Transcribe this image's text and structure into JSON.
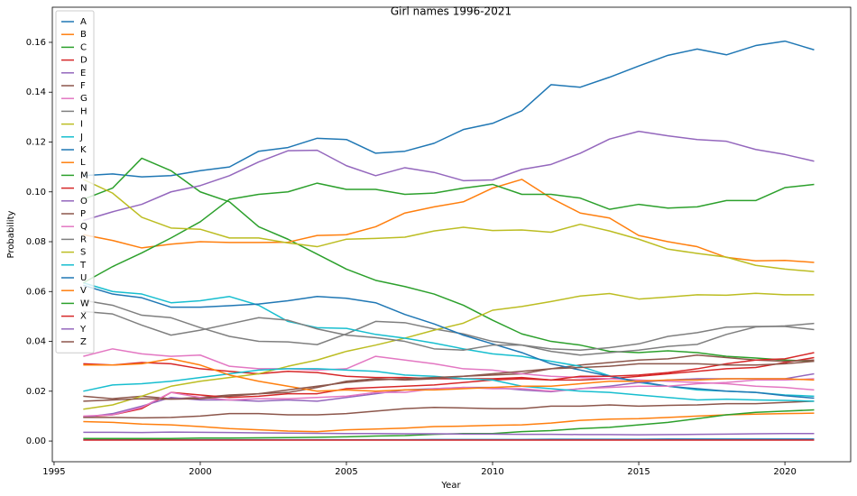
{
  "chart_data": {
    "type": "line",
    "title": "Girl names 1996-2021",
    "x_label": "Year",
    "y_label": "Probability",
    "x": [
      1996,
      1997,
      1998,
      1999,
      2000,
      2001,
      2002,
      2003,
      2004,
      2005,
      2006,
      2007,
      2008,
      2009,
      2010,
      2011,
      2012,
      2013,
      2014,
      2015,
      2016,
      2017,
      2018,
      2019,
      2020,
      2021
    ],
    "xlim": [
      1994.94,
      2022.25
    ],
    "xticks": [
      1995,
      2000,
      2005,
      2010,
      2015,
      2020
    ],
    "ylim": [
      -0.0083,
      0.1741
    ],
    "yticks": [
      {
        "value": 0,
        "label": "0.00"
      },
      0.02,
      0.04,
      0.06,
      0.08,
      {
        "value": 0.1,
        "label": "0.10"
      },
      0.12,
      0.14,
      0.16
    ],
    "grid": false,
    "legend": "upper left",
    "series": [
      {
        "name": "A",
        "color": "#1f77b4",
        "values": [
          0.1065,
          0.1072,
          0.106,
          0.1065,
          0.1085,
          0.11,
          0.1163,
          0.1178,
          0.1215,
          0.121,
          0.1155,
          0.1163,
          0.1195,
          0.125,
          0.1275,
          0.1325,
          0.143,
          0.142,
          0.146,
          0.1505,
          0.1548,
          0.1573,
          0.155,
          0.1587,
          0.1605,
          0.157
        ]
      },
      {
        "name": "B",
        "color": "#ff7f0e",
        "values": [
          0.0078,
          0.0075,
          0.0068,
          0.0065,
          0.0058,
          0.005,
          0.0045,
          0.004,
          0.0038,
          0.0045,
          0.0048,
          0.0052,
          0.0058,
          0.006,
          0.0063,
          0.0065,
          0.0072,
          0.0083,
          0.0088,
          0.009,
          0.0095,
          0.01,
          0.0105,
          0.0108,
          0.011,
          0.0112
        ]
      },
      {
        "name": "C",
        "color": "#2ca02c",
        "values": [
          0.097,
          0.1015,
          0.1135,
          0.1085,
          0.1,
          0.096,
          0.086,
          0.081,
          0.075,
          0.069,
          0.0645,
          0.062,
          0.059,
          0.0545,
          0.0485,
          0.043,
          0.04,
          0.0385,
          0.036,
          0.0355,
          0.0362,
          0.0355,
          0.034,
          0.0333,
          0.0325,
          0.032
        ]
      },
      {
        "name": "D",
        "color": "#d62728",
        "values": [
          0.031,
          0.0305,
          0.0315,
          0.031,
          0.029,
          0.028,
          0.027,
          0.028,
          0.0275,
          0.026,
          0.0255,
          0.0255,
          0.025,
          0.025,
          0.025,
          0.0255,
          0.0245,
          0.0245,
          0.025,
          0.026,
          0.027,
          0.028,
          0.029,
          0.0295,
          0.0315,
          0.0335
        ]
      },
      {
        "name": "E",
        "color": "#9467bd",
        "values": [
          0.0885,
          0.092,
          0.095,
          0.1,
          0.1025,
          0.1065,
          0.112,
          0.1165,
          0.1167,
          0.1105,
          0.1065,
          0.1097,
          0.1078,
          0.1045,
          0.1048,
          0.109,
          0.111,
          0.1155,
          0.1212,
          0.1243,
          0.1225,
          0.121,
          0.1203,
          0.117,
          0.115,
          0.1123
        ]
      },
      {
        "name": "F",
        "color": "#8c564b",
        "values": [
          0.018,
          0.017,
          0.018,
          0.017,
          0.0175,
          0.0185,
          0.019,
          0.0195,
          0.0215,
          0.024,
          0.025,
          0.0245,
          0.025,
          0.026,
          0.0265,
          0.027,
          0.029,
          0.0305,
          0.0315,
          0.0325,
          0.033,
          0.0345,
          0.0335,
          0.0325,
          0.032,
          0.0325
        ]
      },
      {
        "name": "G",
        "color": "#e377c2",
        "values": [
          0.034,
          0.037,
          0.035,
          0.034,
          0.0345,
          0.03,
          0.029,
          0.029,
          0.0285,
          0.029,
          0.034,
          0.0325,
          0.031,
          0.029,
          0.0285,
          0.027,
          0.026,
          0.0255,
          0.025,
          0.0245,
          0.024,
          0.0235,
          0.023,
          0.022,
          0.0215,
          0.0205
        ]
      },
      {
        "name": "H",
        "color": "#7f7f7f",
        "values": [
          0.0565,
          0.0545,
          0.0505,
          0.0495,
          0.0455,
          0.042,
          0.04,
          0.0398,
          0.0387,
          0.043,
          0.048,
          0.0475,
          0.045,
          0.043,
          0.04,
          0.0385,
          0.037,
          0.0365,
          0.0375,
          0.039,
          0.042,
          0.0435,
          0.0457,
          0.046,
          0.046,
          0.0447
        ]
      },
      {
        "name": "I",
        "color": "#bcbd22",
        "values": [
          0.0128,
          0.0145,
          0.018,
          0.022,
          0.024,
          0.0255,
          0.027,
          0.03,
          0.0325,
          0.036,
          0.0385,
          0.0413,
          0.0445,
          0.0473,
          0.0525,
          0.054,
          0.056,
          0.0582,
          0.0592,
          0.057,
          0.0578,
          0.0587,
          0.0585,
          0.0593,
          0.0587,
          0.0587
        ]
      },
      {
        "name": "J",
        "color": "#17becf",
        "values": [
          0.0635,
          0.06,
          0.059,
          0.0555,
          0.0563,
          0.058,
          0.0545,
          0.048,
          0.0455,
          0.0452,
          0.0428,
          0.0413,
          0.0393,
          0.037,
          0.035,
          0.034,
          0.032,
          0.03,
          0.0262,
          0.0235,
          0.022,
          0.0205,
          0.02,
          0.0195,
          0.0185,
          0.018
        ]
      },
      {
        "name": "K",
        "color": "#1f77b4",
        "values": [
          0.0625,
          0.059,
          0.0575,
          0.0537,
          0.0537,
          0.0543,
          0.055,
          0.0563,
          0.058,
          0.0573,
          0.0555,
          0.0508,
          0.047,
          0.0425,
          0.039,
          0.0355,
          0.031,
          0.0285,
          0.026,
          0.0238,
          0.022,
          0.021,
          0.02,
          0.0195,
          0.0182,
          0.0172
        ]
      },
      {
        "name": "L",
        "color": "#ff7f0e",
        "values": [
          0.0828,
          0.0805,
          0.0775,
          0.079,
          0.08,
          0.0797,
          0.0797,
          0.0798,
          0.0825,
          0.0828,
          0.086,
          0.0915,
          0.094,
          0.096,
          0.1015,
          0.105,
          0.0975,
          0.0915,
          0.0895,
          0.0825,
          0.08,
          0.078,
          0.0737,
          0.0723,
          0.0725,
          0.0717
        ]
      },
      {
        "name": "M",
        "color": "#2ca02c",
        "values": [
          0.0635,
          0.07,
          0.0755,
          0.0815,
          0.088,
          0.097,
          0.099,
          0.1,
          0.1035,
          0.101,
          0.101,
          0.099,
          0.0995,
          0.1015,
          0.103,
          0.099,
          0.099,
          0.0975,
          0.093,
          0.095,
          0.0935,
          0.094,
          0.0965,
          0.0965,
          0.1017,
          0.103
        ]
      },
      {
        "name": "N",
        "color": "#d62728",
        "values": [
          0.0097,
          0.0105,
          0.013,
          0.0195,
          0.0185,
          0.0175,
          0.018,
          0.019,
          0.019,
          0.021,
          0.0215,
          0.022,
          0.0225,
          0.0235,
          0.0245,
          0.025,
          0.0245,
          0.026,
          0.026,
          0.0265,
          0.0275,
          0.029,
          0.031,
          0.0325,
          0.033,
          0.0355
        ]
      },
      {
        "name": "O",
        "color": "#9467bd",
        "values": [
          0.0095,
          0.011,
          0.014,
          0.0175,
          0.0165,
          0.0165,
          0.016,
          0.0165,
          0.016,
          0.0175,
          0.019,
          0.0205,
          0.021,
          0.0215,
          0.0215,
          0.0205,
          0.0198,
          0.021,
          0.022,
          0.0235,
          0.0245,
          0.025,
          0.025,
          0.025,
          0.025,
          0.027
        ]
      },
      {
        "name": "P",
        "color": "#8c564b",
        "values": [
          0.0095,
          0.0095,
          0.0093,
          0.0095,
          0.01,
          0.011,
          0.011,
          0.0105,
          0.0105,
          0.011,
          0.012,
          0.013,
          0.0135,
          0.0133,
          0.013,
          0.013,
          0.014,
          0.014,
          0.0145,
          0.014,
          0.0143,
          0.0145,
          0.015,
          0.015,
          0.0155,
          0.016
        ]
      },
      {
        "name": "Q",
        "color": "#e377c2",
        "values": [
          0.01,
          0.0105,
          0.0135,
          0.0195,
          0.0175,
          0.0165,
          0.017,
          0.017,
          0.0175,
          0.018,
          0.0195,
          0.0195,
          0.021,
          0.0215,
          0.021,
          0.021,
          0.02,
          0.021,
          0.0215,
          0.022,
          0.022,
          0.023,
          0.0235,
          0.0245,
          0.0245,
          0.025
        ]
      },
      {
        "name": "R",
        "color": "#7f7f7f",
        "values": [
          0.052,
          0.051,
          0.0465,
          0.0425,
          0.0445,
          0.047,
          0.0495,
          0.0485,
          0.045,
          0.0425,
          0.0415,
          0.04,
          0.037,
          0.0365,
          0.0385,
          0.0385,
          0.036,
          0.0345,
          0.0355,
          0.0365,
          0.038,
          0.0388,
          0.0428,
          0.0458,
          0.0462,
          0.0472
        ]
      },
      {
        "name": "S",
        "color": "#bcbd22",
        "values": [
          0.105,
          0.0995,
          0.0898,
          0.0855,
          0.085,
          0.0815,
          0.0815,
          0.0795,
          0.078,
          0.081,
          0.0813,
          0.0818,
          0.0843,
          0.0858,
          0.0845,
          0.0847,
          0.0838,
          0.087,
          0.0843,
          0.081,
          0.077,
          0.0753,
          0.0738,
          0.0705,
          0.069,
          0.068
        ]
      },
      {
        "name": "T",
        "color": "#17becf",
        "values": [
          0.02,
          0.0225,
          0.023,
          0.024,
          0.0255,
          0.027,
          0.0285,
          0.029,
          0.029,
          0.0285,
          0.028,
          0.0265,
          0.026,
          0.025,
          0.0245,
          0.022,
          0.021,
          0.02,
          0.0195,
          0.0185,
          0.0175,
          0.0165,
          0.0168,
          0.0165,
          0.0163,
          0.016
        ]
      },
      {
        "name": "U",
        "color": "#1f77b4",
        "values": [
          0.0005,
          0.0005,
          0.0005,
          0.0005,
          0.0005,
          0.0005,
          0.0005,
          0.0005,
          0.0005,
          0.0005,
          0.0005,
          0.0005,
          0.0006,
          0.0006,
          0.0006,
          0.0006,
          0.0007,
          0.0007,
          0.0007,
          0.0007,
          0.0008,
          0.0008,
          0.0008,
          0.0008,
          0.0008,
          0.0008
        ]
      },
      {
        "name": "V",
        "color": "#ff7f0e",
        "values": [
          0.0305,
          0.0305,
          0.031,
          0.033,
          0.0305,
          0.0265,
          0.024,
          0.022,
          0.02,
          0.0205,
          0.02,
          0.0205,
          0.0205,
          0.021,
          0.0215,
          0.022,
          0.022,
          0.023,
          0.024,
          0.024,
          0.0245,
          0.0245,
          0.025,
          0.025,
          0.025,
          0.0245
        ]
      },
      {
        "name": "W",
        "color": "#2ca02c",
        "values": [
          0.001,
          0.001,
          0.001,
          0.001,
          0.0012,
          0.0012,
          0.0013,
          0.0014,
          0.0015,
          0.0017,
          0.002,
          0.0022,
          0.0027,
          0.003,
          0.003,
          0.0038,
          0.0042,
          0.005,
          0.0055,
          0.0065,
          0.0075,
          0.009,
          0.0105,
          0.0115,
          0.012,
          0.0125
        ]
      },
      {
        "name": "X",
        "color": "#d62728",
        "values": [
          0.0004,
          0.0004,
          0.0004,
          0.0004,
          0.0004,
          0.0004,
          0.0004,
          0.0004,
          0.0004,
          0.0004,
          0.0004,
          0.0004,
          0.0004,
          0.0004,
          0.0004,
          0.0004,
          0.0004,
          0.0004,
          0.0004,
          0.0004,
          0.0004,
          0.0004,
          0.0004,
          0.0004,
          0.0004,
          0.0004
        ]
      },
      {
        "name": "Y",
        "color": "#9467bd",
        "values": [
          0.0035,
          0.0035,
          0.0034,
          0.0036,
          0.0035,
          0.0034,
          0.0033,
          0.0032,
          0.0031,
          0.003,
          0.003,
          0.0029,
          0.0029,
          0.0028,
          0.0028,
          0.0027,
          0.0027,
          0.0026,
          0.0026,
          0.0025,
          0.0026,
          0.0027,
          0.0028,
          0.0029,
          0.003,
          0.003
        ]
      },
      {
        "name": "Z",
        "color": "#8c564b",
        "values": [
          0.016,
          0.0165,
          0.017,
          0.0168,
          0.017,
          0.018,
          0.019,
          0.0205,
          0.022,
          0.0235,
          0.0245,
          0.025,
          0.0255,
          0.026,
          0.027,
          0.028,
          0.029,
          0.0295,
          0.03,
          0.031,
          0.031,
          0.031,
          0.0305,
          0.0305,
          0.031,
          0.032
        ]
      }
    ]
  }
}
